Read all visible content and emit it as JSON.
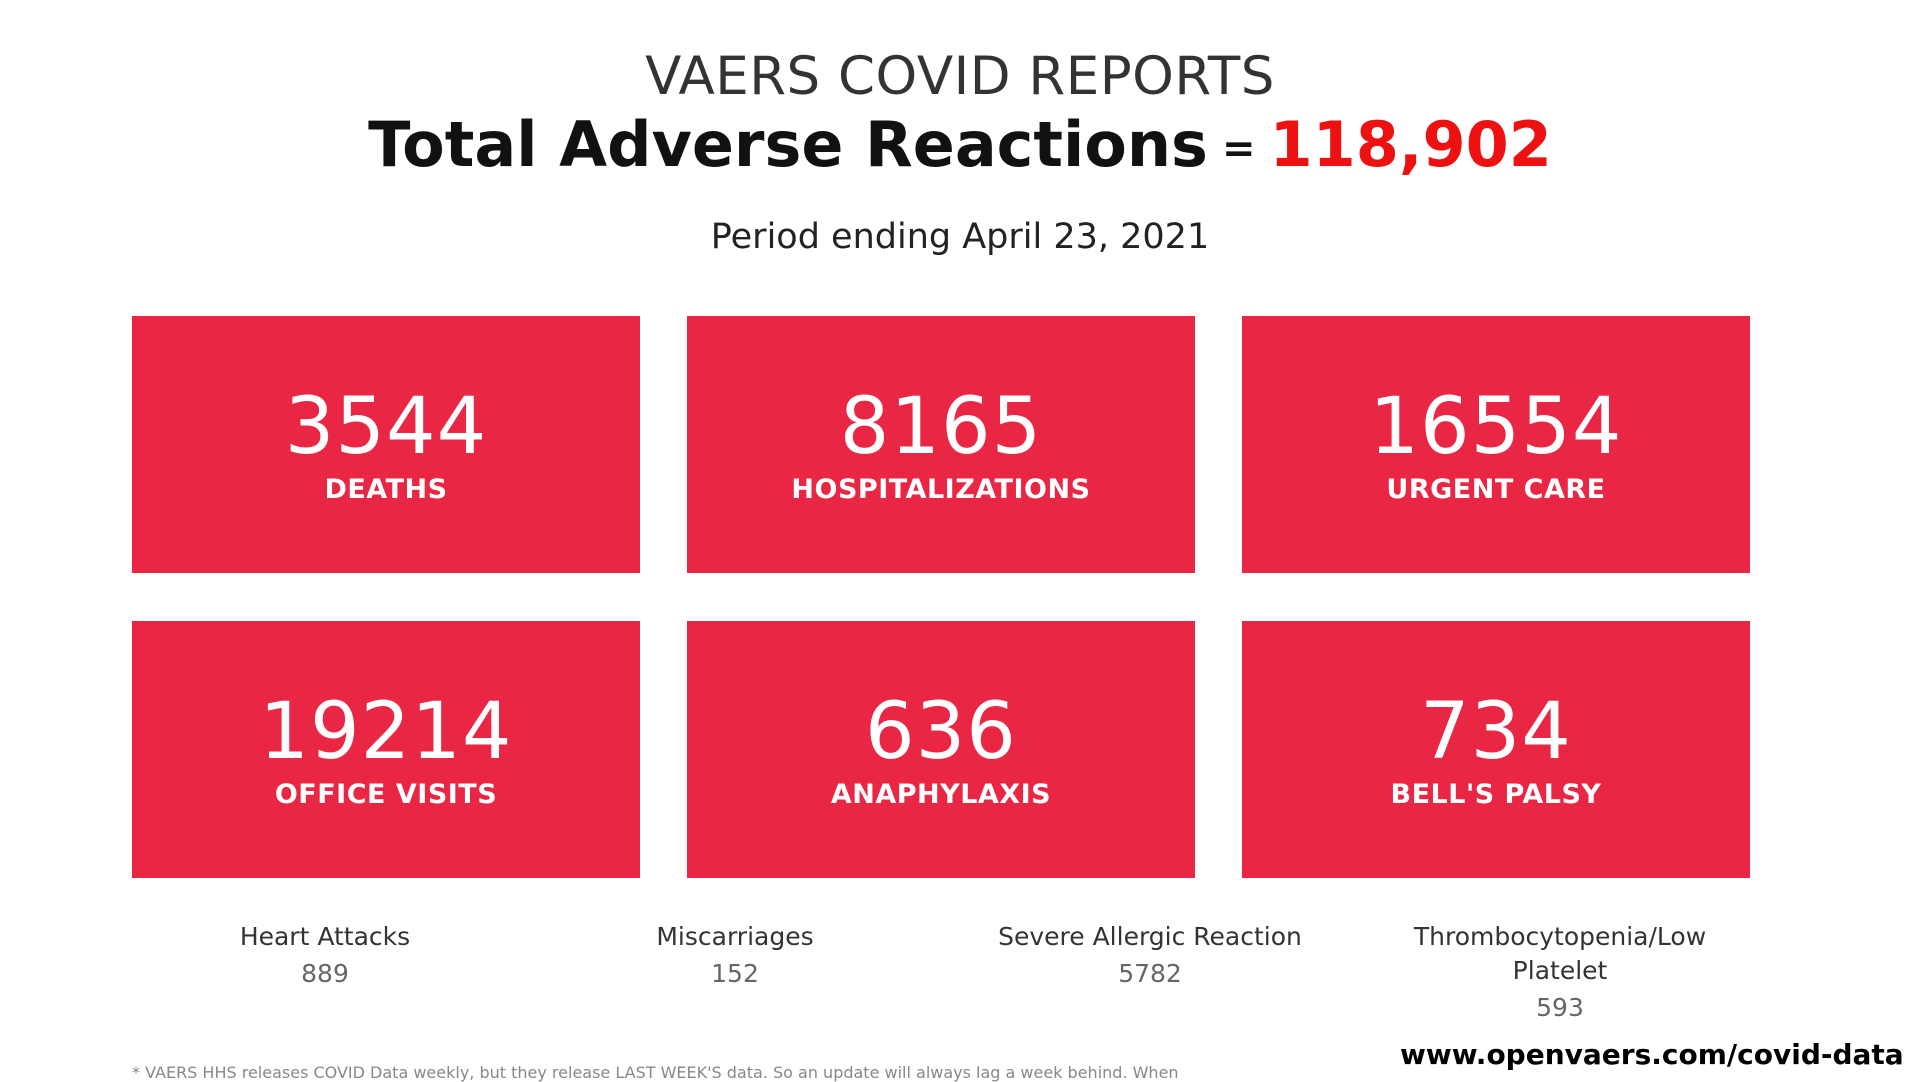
{
  "header": {
    "super_title": "VAERS COVID REPORTS",
    "main_title": "Total Adverse Reactions",
    "equals": "=",
    "total": "118,902",
    "period": "Period ending April 23, 2021"
  },
  "cards": [
    {
      "value": "3544",
      "label": "DEATHS"
    },
    {
      "value": "8165",
      "label": "HOSPITALIZATIONS"
    },
    {
      "value": "16554",
      "label": "URGENT CARE"
    },
    {
      "value": "19214",
      "label": "OFFICE VISITS"
    },
    {
      "value": "636",
      "label": "ANAPHYLAXIS"
    },
    {
      "value": "734",
      "label": "BELL'S PALSY"
    }
  ],
  "stats": [
    {
      "label": "Heart Attacks",
      "value": "889"
    },
    {
      "label": "Miscarriages",
      "value": "152"
    },
    {
      "label": "Severe Allergic Reaction",
      "value": "5782"
    },
    {
      "label": "Thrombocytopenia/Low Platelet",
      "value": "593"
    }
  ],
  "website": "www.openvaers.com/covid-data",
  "footnote": "* VAERS HHS releases COVID Data weekly, but they release LAST WEEK'S data. So an update will always lag a week behind. When",
  "colors": {
    "card_background": "#e92643",
    "total_highlight": "#ee1111"
  }
}
